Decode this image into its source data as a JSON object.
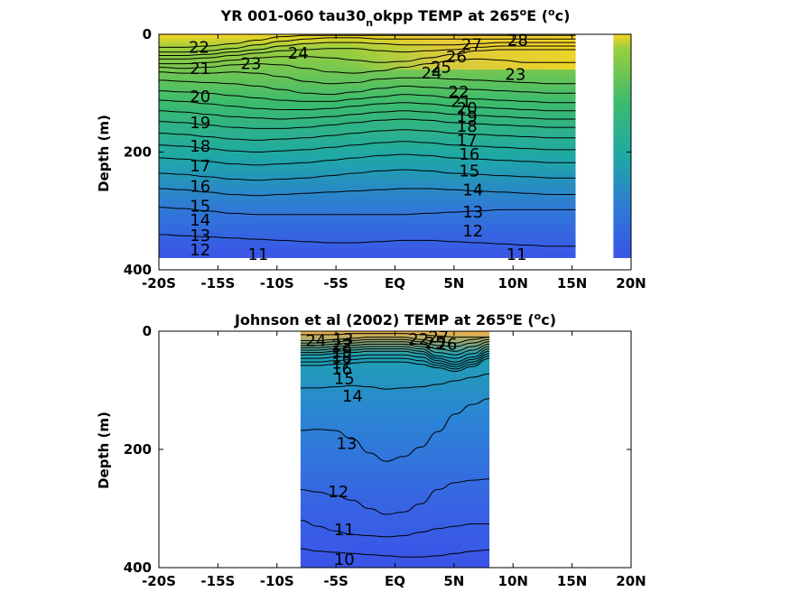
{
  "chart_data": [
    {
      "type": "contour",
      "title_main": "YR 001-060 tau30",
      "title_sub": "n",
      "title_rest": "okpp TEMP at 265",
      "title_deg": "o",
      "title_unit_open": "E (",
      "title_unit_deg": "o",
      "title_unit_close": "c)",
      "ylabel": "Depth (m)",
      "xlim": [
        -20,
        20
      ],
      "ylim": [
        400,
        0
      ],
      "xticks": [
        -20,
        -15,
        -10,
        -5,
        0,
        5,
        10,
        15,
        20
      ],
      "xticklabels": [
        "-20S",
        "-15S",
        "-10S",
        "-5S",
        "EQ",
        "5N",
        "10N",
        "15N",
        "20N"
      ],
      "yticks": [
        0,
        200,
        400
      ],
      "yticklabels": [
        "0",
        "200",
        "400"
      ],
      "colors": {
        "warm": "#f9d523",
        "mid": "#2fb67f",
        "cool": "#3a54e8"
      },
      "data_extent": {
        "x": [
          -20,
          15.3
        ],
        "depth": [
          0,
          380
        ]
      },
      "gap": {
        "x": [
          15.3,
          18.5
        ]
      },
      "strip": {
        "x": [
          18.5,
          20
        ],
        "depth": [
          0,
          380
        ]
      },
      "levels": [
        {
          "value": 28,
          "depth": [
            22,
            22,
            20,
            16,
            10,
            4,
            2,
            2,
            2,
            2,
            2,
            2,
            2,
            2,
            2,
            2,
            2,
            2
          ]
        },
        {
          "value": 27,
          "depth": [
            30,
            30,
            28,
            24,
            18,
            12,
            8,
            6,
            6,
            8,
            8,
            8,
            8,
            8,
            8,
            8,
            8,
            8
          ]
        },
        {
          "value": 26,
          "depth": [
            36,
            36,
            34,
            30,
            26,
            20,
            16,
            14,
            14,
            16,
            18,
            18,
            18,
            16,
            14,
            14,
            14,
            14
          ]
        },
        {
          "value": 25,
          "depth": [
            42,
            42,
            40,
            36,
            32,
            28,
            26,
            24,
            24,
            28,
            30,
            28,
            26,
            22,
            20,
            20,
            20,
            20
          ]
        },
        {
          "value": 24,
          "depth": [
            50,
            50,
            48,
            44,
            40,
            38,
            38,
            40,
            44,
            48,
            46,
            40,
            34,
            28,
            26,
            26,
            26,
            26
          ]
        },
        {
          "value": 23,
          "depth": [
            56,
            58,
            56,
            52,
            50,
            52,
            58,
            64,
            66,
            62,
            56,
            50,
            44,
            42,
            44,
            48,
            48,
            48
          ]
        },
        {
          "value": 22,
          "depth": [
            64,
            66,
            66,
            64,
            66,
            72,
            80,
            84,
            82,
            76,
            74,
            74,
            76,
            78,
            80,
            82,
            84,
            84
          ]
        },
        {
          "value": 21,
          "depth": [
            78,
            80,
            82,
            84,
            88,
            94,
            100,
            102,
            98,
            92,
            88,
            90,
            92,
            94,
            96,
            98,
            100,
            100
          ]
        },
        {
          "value": 20,
          "depth": [
            96,
            98,
            100,
            104,
            108,
            112,
            114,
            114,
            110,
            106,
            102,
            104,
            108,
            110,
            112,
            114,
            116,
            116
          ]
        },
        {
          "value": 19,
          "depth": [
            112,
            114,
            118,
            122,
            126,
            128,
            128,
            126,
            122,
            118,
            116,
            118,
            122,
            124,
            126,
            128,
            130,
            130
          ]
        },
        {
          "value": 18,
          "depth": [
            130,
            132,
            136,
            140,
            142,
            144,
            142,
            140,
            136,
            132,
            130,
            132,
            136,
            138,
            140,
            142,
            144,
            144
          ]
        },
        {
          "value": 17,
          "depth": [
            148,
            150,
            154,
            158,
            160,
            160,
            158,
            154,
            150,
            146,
            144,
            146,
            150,
            152,
            154,
            156,
            158,
            158
          ]
        },
        {
          "value": 16,
          "depth": [
            168,
            170,
            174,
            178,
            180,
            178,
            176,
            172,
            168,
            164,
            162,
            164,
            168,
            170,
            172,
            174,
            176,
            176
          ]
        },
        {
          "value": 15,
          "depth": [
            188,
            190,
            194,
            198,
            200,
            198,
            196,
            192,
            188,
            184,
            182,
            184,
            188,
            190,
            192,
            194,
            196,
            196
          ]
        },
        {
          "value": 14,
          "depth": [
            210,
            212,
            216,
            220,
            222,
            220,
            218,
            214,
            210,
            206,
            204,
            206,
            210,
            212,
            214,
            216,
            218,
            218
          ]
        },
        {
          "value": 13,
          "depth": [
            236,
            238,
            242,
            246,
            248,
            246,
            244,
            240,
            236,
            232,
            230,
            232,
            236,
            238,
            240,
            242,
            244,
            244
          ]
        },
        {
          "value": 12,
          "depth": [
            262,
            264,
            268,
            272,
            274,
            272,
            270,
            268,
            266,
            264,
            262,
            262,
            264,
            266,
            268,
            270,
            272,
            272
          ]
        },
        {
          "value": 11,
          "depth": [
            294,
            296,
            300,
            304,
            306,
            306,
            306,
            306,
            306,
            306,
            306,
            304,
            302,
            300,
            298,
            298,
            298,
            298
          ]
        },
        {
          "value": 10,
          "depth": [
            340,
            342,
            344,
            346,
            348,
            350,
            352,
            354,
            354,
            352,
            350,
            350,
            352,
            354,
            356,
            358,
            360,
            360
          ]
        }
      ],
      "labels": [
        {
          "text": "22",
          "x": -16.6,
          "depth": 22
        },
        {
          "text": "21",
          "x": -16.5,
          "depth": 58
        },
        {
          "text": "23",
          "x": -12.2,
          "depth": 50
        },
        {
          "text": "24",
          "x": -8.2,
          "depth": 32
        },
        {
          "text": "20",
          "x": -16.5,
          "depth": 106
        },
        {
          "text": "19",
          "x": -16.5,
          "depth": 150
        },
        {
          "text": "18",
          "x": -16.5,
          "depth": 190
        },
        {
          "text": "17",
          "x": -16.5,
          "depth": 224
        },
        {
          "text": "16",
          "x": -16.5,
          "depth": 258
        },
        {
          "text": "15",
          "x": -16.5,
          "depth": 292
        },
        {
          "text": "14",
          "x": -16.5,
          "depth": 316
        },
        {
          "text": "13",
          "x": -16.5,
          "depth": 342
        },
        {
          "text": "12",
          "x": -16.5,
          "depth": 366
        },
        {
          "text": "11",
          "x": -11.6,
          "depth": 374
        },
        {
          "text": "27",
          "x": 6.5,
          "depth": 18
        },
        {
          "text": "28",
          "x": 10.4,
          "depth": 10
        },
        {
          "text": "26",
          "x": 5.2,
          "depth": 38
        },
        {
          "text": "25",
          "x": 3.9,
          "depth": 56
        },
        {
          "text": "24",
          "x": 3.1,
          "depth": 66
        },
        {
          "text": "23",
          "x": 10.2,
          "depth": 68
        },
        {
          "text": "22",
          "x": 5.4,
          "depth": 98
        },
        {
          "text": "21",
          "x": 5.6,
          "depth": 114
        },
        {
          "text": "20",
          "x": 6.1,
          "depth": 126
        },
        {
          "text": "19",
          "x": 6.1,
          "depth": 140
        },
        {
          "text": "18",
          "x": 6.1,
          "depth": 156
        },
        {
          "text": "17",
          "x": 6.1,
          "depth": 180
        },
        {
          "text": "16",
          "x": 6.3,
          "depth": 204
        },
        {
          "text": "15",
          "x": 6.3,
          "depth": 232
        },
        {
          "text": "14",
          "x": 6.6,
          "depth": 264
        },
        {
          "text": "13",
          "x": 6.6,
          "depth": 302
        },
        {
          "text": "12",
          "x": 6.6,
          "depth": 334
        },
        {
          "text": "11",
          "x": 10.3,
          "depth": 374
        }
      ]
    },
    {
      "type": "contour",
      "title_main": "Johnson et al (2002) TEMP at 265",
      "title_deg": "o",
      "title_unit_open": "E (",
      "title_unit_deg": "o",
      "title_unit_close": "c)",
      "ylabel": "Depth (m)",
      "xlim": [
        -20,
        20
      ],
      "ylim": [
        400,
        0
      ],
      "xticks": [
        -20,
        -15,
        -10,
        -5,
        0,
        5,
        10,
        15,
        20
      ],
      "xticklabels": [
        "-20S",
        "-15S",
        "-10S",
        "-5S",
        "EQ",
        "5N",
        "10N",
        "15N",
        "20N"
      ],
      "yticks": [
        0,
        200,
        400
      ],
      "yticklabels": [
        "0",
        "200",
        "400"
      ],
      "colors": {
        "warm": "#f9d523",
        "mid": "#2fb67f",
        "cool": "#3a54e8"
      },
      "data_extent": {
        "x": [
          -8,
          8
        ],
        "depth": [
          0,
          400
        ]
      },
      "levels": [
        {
          "value": 25,
          "depth": [
            6,
            6,
            6,
            4,
            4,
            4,
            4,
            6,
            8,
            10,
            10,
            10
          ]
        },
        {
          "value": 24,
          "depth": [
            16,
            16,
            14,
            12,
            10,
            10,
            10,
            14,
            18,
            20,
            14,
            10
          ]
        },
        {
          "value": 23,
          "depth": [
            20,
            20,
            18,
            16,
            14,
            14,
            14,
            18,
            24,
            26,
            20,
            14
          ]
        },
        {
          "value": 22,
          "depth": [
            24,
            24,
            22,
            20,
            18,
            18,
            18,
            22,
            30,
            34,
            26,
            18
          ]
        },
        {
          "value": 21,
          "depth": [
            28,
            28,
            26,
            24,
            22,
            22,
            22,
            26,
            36,
            40,
            32,
            22
          ]
        },
        {
          "value": 20,
          "depth": [
            32,
            32,
            30,
            28,
            26,
            26,
            26,
            30,
            42,
            46,
            38,
            26
          ]
        },
        {
          "value": 19,
          "depth": [
            36,
            36,
            34,
            32,
            30,
            30,
            30,
            34,
            46,
            52,
            44,
            30
          ]
        },
        {
          "value": 18,
          "depth": [
            40,
            40,
            38,
            36,
            34,
            34,
            34,
            38,
            50,
            56,
            48,
            34
          ]
        },
        {
          "value": 17,
          "depth": [
            46,
            46,
            44,
            42,
            40,
            40,
            40,
            44,
            54,
            60,
            52,
            38
          ]
        },
        {
          "value": 16,
          "depth": [
            52,
            52,
            50,
            48,
            46,
            46,
            46,
            50,
            58,
            64,
            56,
            42
          ]
        },
        {
          "value": 15,
          "depth": [
            58,
            58,
            56,
            54,
            52,
            52,
            52,
            56,
            62,
            68,
            60,
            46
          ]
        },
        {
          "value": 14,
          "depth": [
            96,
            96,
            94,
            92,
            94,
            98,
            96,
            94,
            90,
            84,
            78,
            72
          ]
        },
        {
          "value": 13,
          "depth": [
            168,
            166,
            168,
            182,
            206,
            220,
            212,
            196,
            170,
            140,
            124,
            114
          ]
        },
        {
          "value": 12,
          "depth": [
            268,
            272,
            278,
            286,
            300,
            310,
            306,
            292,
            268,
            256,
            252,
            250
          ]
        },
        {
          "value": 11,
          "depth": [
            320,
            330,
            338,
            344,
            346,
            348,
            346,
            340,
            334,
            330,
            326,
            326
          ]
        },
        {
          "value": 10,
          "depth": [
            368,
            372,
            374,
            376,
            378,
            380,
            382,
            382,
            380,
            376,
            372,
            370
          ]
        }
      ],
      "labels": [
        {
          "text": "24",
          "x": -6.7,
          "depth": 16
        },
        {
          "text": "13",
          "x": -4.4,
          "depth": 14
        },
        {
          "text": "22",
          "x": -4.5,
          "depth": 24
        },
        {
          "text": "19",
          "x": -4.5,
          "depth": 34
        },
        {
          "text": "18",
          "x": -4.5,
          "depth": 44
        },
        {
          "text": "17",
          "x": -4.5,
          "depth": 54
        },
        {
          "text": "16",
          "x": -4.5,
          "depth": 64
        },
        {
          "text": "15",
          "x": -4.3,
          "depth": 80
        },
        {
          "text": "14",
          "x": -3.6,
          "depth": 110
        },
        {
          "text": "22",
          "x": 2.0,
          "depth": 14
        },
        {
          "text": "25",
          "x": 3.4,
          "depth": 20
        },
        {
          "text": "26",
          "x": 4.4,
          "depth": 22
        },
        {
          "text": "27",
          "x": 3.7,
          "depth": 10
        },
        {
          "text": "13",
          "x": -4.1,
          "depth": 190
        },
        {
          "text": "12",
          "x": -4.8,
          "depth": 272
        },
        {
          "text": "11",
          "x": -4.3,
          "depth": 336
        },
        {
          "text": "10",
          "x": -4.3,
          "depth": 386
        }
      ]
    }
  ]
}
